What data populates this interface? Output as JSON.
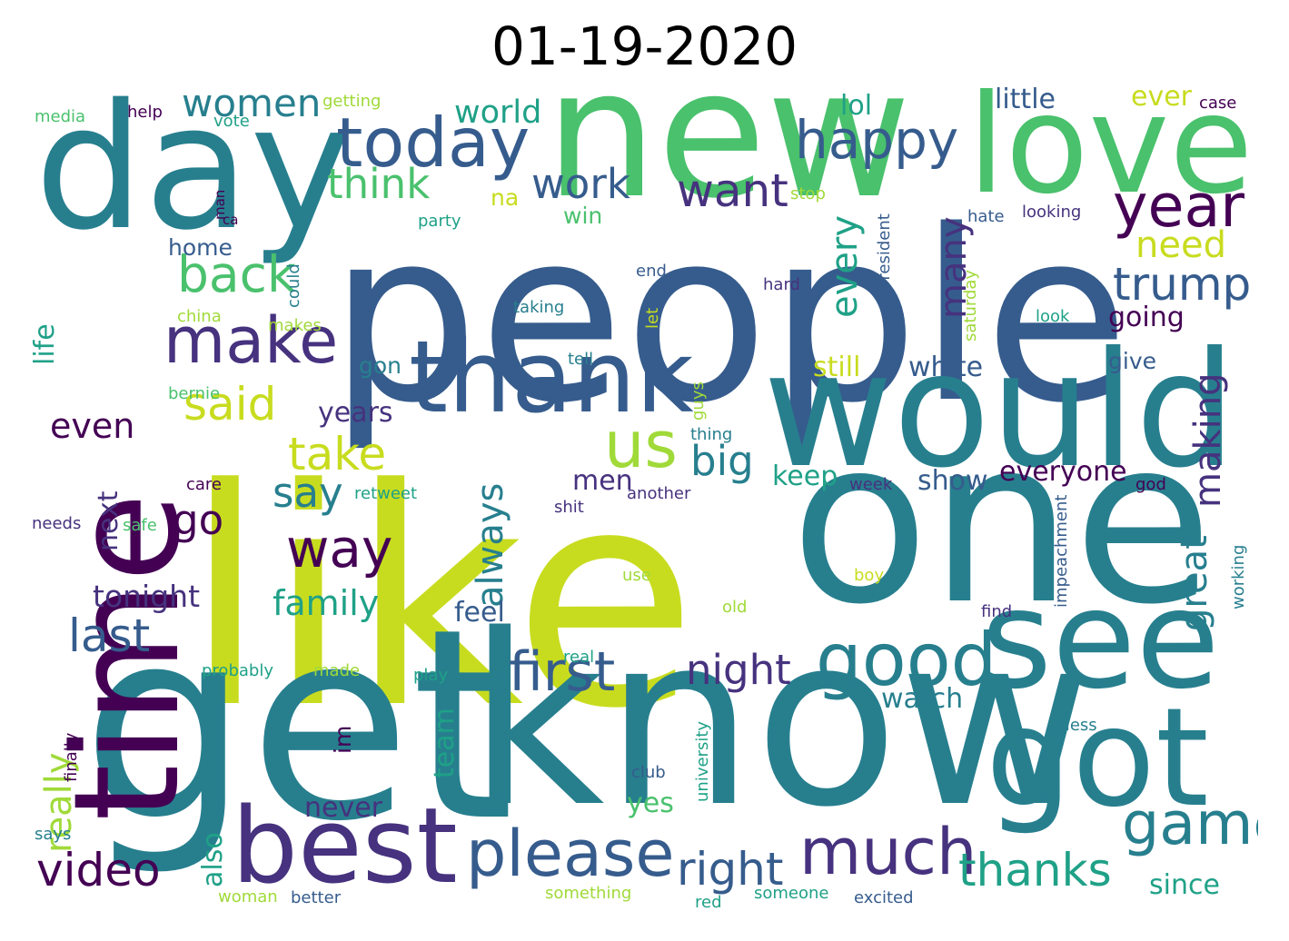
{
  "title": "01-19-2020",
  "colors": {
    "background": "#ffffff",
    "palette": [
      "#440154",
      "#46327e",
      "#365c8d",
      "#277f8e",
      "#1fa187",
      "#4ac16d",
      "#a0da39",
      "#c8dc1f"
    ]
  },
  "words": [
    {
      "text": "people"
    },
    {
      "text": "like"
    },
    {
      "text": "one"
    },
    {
      "text": "know"
    },
    {
      "text": "get"
    },
    {
      "text": "new"
    },
    {
      "text": "would"
    },
    {
      "text": "time"
    },
    {
      "text": "love"
    },
    {
      "text": "day"
    },
    {
      "text": "see"
    },
    {
      "text": "got"
    },
    {
      "text": "thank"
    },
    {
      "text": "best"
    },
    {
      "text": "today"
    },
    {
      "text": "good"
    },
    {
      "text": "please"
    },
    {
      "text": "much"
    },
    {
      "text": "make"
    },
    {
      "text": "year"
    },
    {
      "text": "happy"
    },
    {
      "text": "first"
    },
    {
      "text": "video"
    },
    {
      "text": "trump"
    },
    {
      "text": "us"
    },
    {
      "text": "right"
    },
    {
      "text": "want"
    },
    {
      "text": "way"
    },
    {
      "text": "game"
    },
    {
      "text": "thanks"
    },
    {
      "text": "women"
    },
    {
      "text": "back"
    },
    {
      "text": "last"
    },
    {
      "text": "said"
    },
    {
      "text": "take"
    },
    {
      "text": "go"
    },
    {
      "text": "say"
    },
    {
      "text": "night"
    },
    {
      "text": "think"
    },
    {
      "text": "work"
    },
    {
      "text": "big"
    },
    {
      "text": "every"
    },
    {
      "text": "many"
    },
    {
      "text": "need"
    },
    {
      "text": "always"
    },
    {
      "text": "making"
    },
    {
      "text": "really"
    },
    {
      "text": "great"
    },
    {
      "text": "tonight"
    },
    {
      "text": "family"
    },
    {
      "text": "even"
    },
    {
      "text": "world"
    },
    {
      "text": "lol"
    },
    {
      "text": "little"
    },
    {
      "text": "ever"
    },
    {
      "text": "going"
    },
    {
      "text": "still"
    },
    {
      "text": "white"
    },
    {
      "text": "years"
    },
    {
      "text": "everyone"
    },
    {
      "text": "keep"
    },
    {
      "text": "show"
    },
    {
      "text": "feel"
    },
    {
      "text": "watch"
    },
    {
      "text": "never"
    },
    {
      "text": "yes"
    },
    {
      "text": "since"
    },
    {
      "text": "life"
    },
    {
      "text": "next"
    },
    {
      "text": "also"
    },
    {
      "text": "team"
    },
    {
      "text": "men"
    },
    {
      "text": "win"
    },
    {
      "text": "home"
    },
    {
      "text": "na"
    },
    {
      "text": "gon"
    },
    {
      "text": "give"
    },
    {
      "text": "im"
    },
    {
      "text": "media"
    },
    {
      "text": "help"
    },
    {
      "text": "vote"
    },
    {
      "text": "getting"
    },
    {
      "text": "case"
    },
    {
      "text": "man"
    },
    {
      "text": "ca"
    },
    {
      "text": "party"
    },
    {
      "text": "stop"
    },
    {
      "text": "hate"
    },
    {
      "text": "looking"
    },
    {
      "text": "president"
    },
    {
      "text": "saturday"
    },
    {
      "text": "could"
    },
    {
      "text": "end"
    },
    {
      "text": "let"
    },
    {
      "text": "hard"
    },
    {
      "text": "look"
    },
    {
      "text": "china"
    },
    {
      "text": "makes"
    },
    {
      "text": "taking"
    },
    {
      "text": "tell"
    },
    {
      "text": "bernie"
    },
    {
      "text": "guys"
    },
    {
      "text": "thing"
    },
    {
      "text": "care"
    },
    {
      "text": "retweet"
    },
    {
      "text": "another"
    },
    {
      "text": "week"
    },
    {
      "text": "god"
    },
    {
      "text": "needs"
    },
    {
      "text": "safe"
    },
    {
      "text": "shit"
    },
    {
      "text": "impeachment"
    },
    {
      "text": "use"
    },
    {
      "text": "boy"
    },
    {
      "text": "working"
    },
    {
      "text": "old"
    },
    {
      "text": "find"
    },
    {
      "text": "real"
    },
    {
      "text": "probably"
    },
    {
      "text": "made"
    },
    {
      "text": "play"
    },
    {
      "text": "university"
    },
    {
      "text": "guess"
    },
    {
      "text": "finally"
    },
    {
      "text": "club"
    },
    {
      "text": "says"
    },
    {
      "text": "woman"
    },
    {
      "text": "better"
    },
    {
      "text": "something"
    },
    {
      "text": "red"
    },
    {
      "text": "someone"
    },
    {
      "text": "excited"
    }
  ]
}
